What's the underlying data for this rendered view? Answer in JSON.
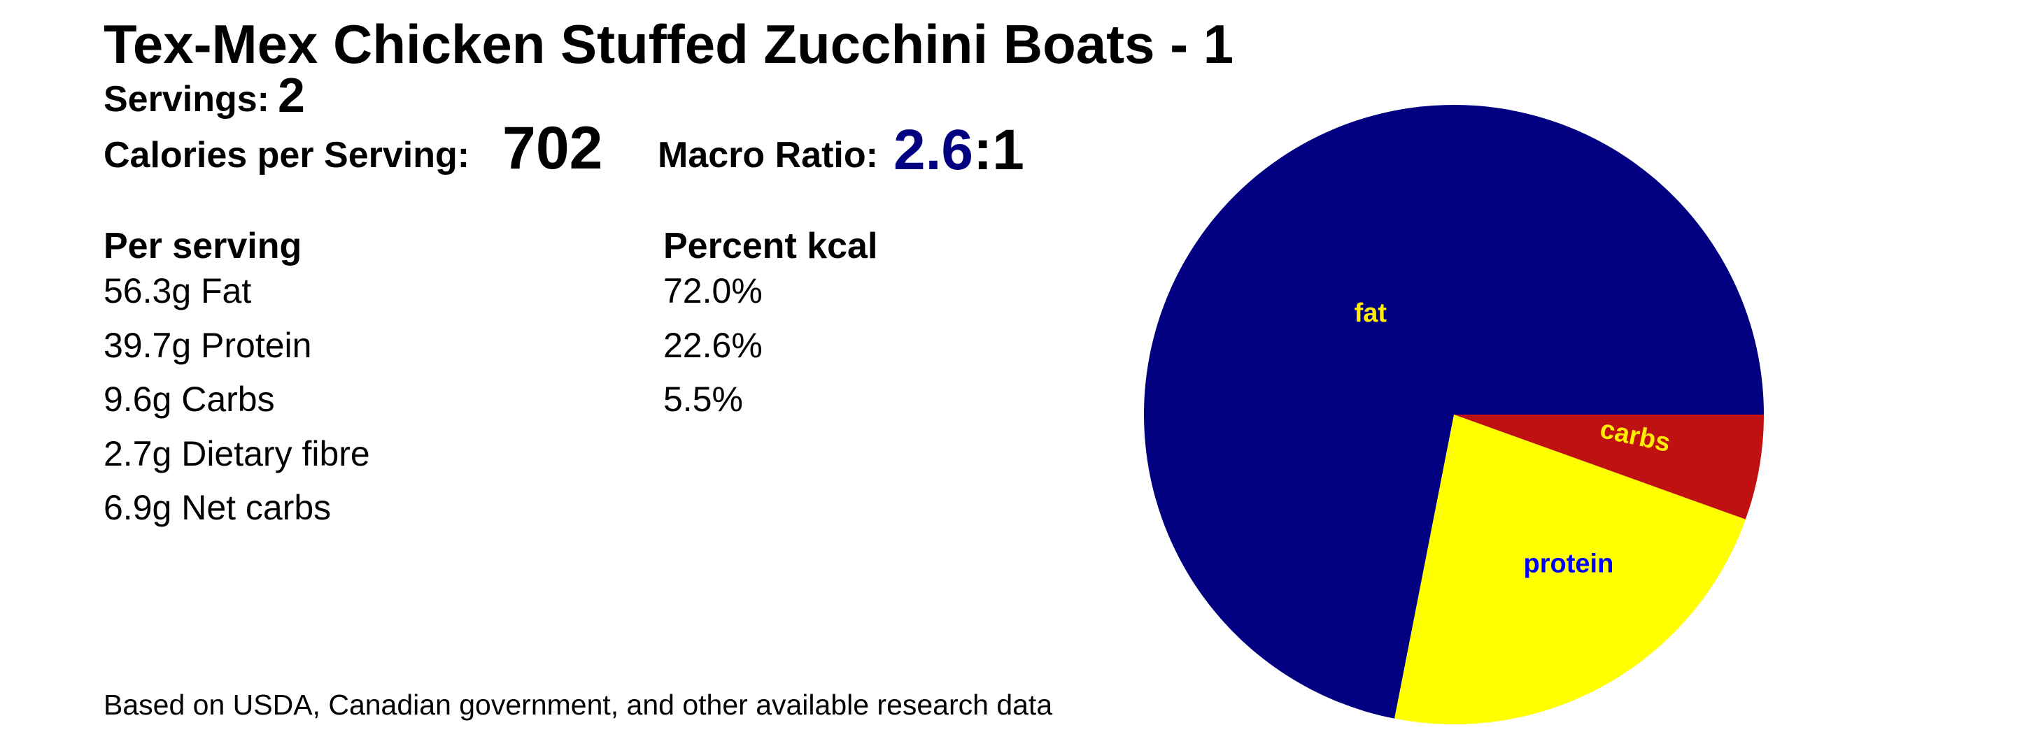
{
  "header": {
    "title": "Tex-Mex Chicken Stuffed Zucchini Boats - 1",
    "servings_label": "Servings:",
    "servings_value": "2",
    "calories_label": "Calories per Serving:",
    "calories_value": "702",
    "macro_ratio_label": "Macro Ratio:",
    "macro_ratio_value": "2.6",
    "macro_ratio_suffix": ":1"
  },
  "nutrition": {
    "per_serving_header": "Per serving",
    "percent_kcal_header": "Percent kcal",
    "rows": [
      {
        "amount": "56.3g Fat",
        "percent": "72.0%"
      },
      {
        "amount": "39.7g Protein",
        "percent": "22.6%"
      },
      {
        "amount": "9.6g Carbs",
        "percent": "5.5%"
      },
      {
        "amount": "2.7g Dietary fibre",
        "percent": ""
      },
      {
        "amount": "6.9g Net carbs",
        "percent": ""
      }
    ]
  },
  "footer": {
    "note": "Based on USDA, Canadian government, and other available research data"
  },
  "colors": {
    "accent_navy": "#000080"
  },
  "chart_data": {
    "type": "pie",
    "title": "",
    "unit": "percent kcal",
    "legend_position": "inside-labels",
    "start_angle_deg": 0,
    "direction": "clockwise",
    "categories": [
      "carbs",
      "protein",
      "fat"
    ],
    "values": [
      5.5,
      22.6,
      72.0
    ],
    "slices": [
      {
        "label": "carbs",
        "value": 5.5,
        "percent_text": "5.5%",
        "color": "#bf1111",
        "label_color": "#ffee00",
        "label_pos": [
          0.585,
          0.07
        ],
        "label_rotation_deg": 12
      },
      {
        "label": "protein",
        "value": 22.6,
        "percent_text": "22.6%",
        "color": "#ffff00",
        "label_color": "#0000ff",
        "label_pos": [
          0.37,
          0.482
        ],
        "label_rotation_deg": 0
      },
      {
        "label": "fat",
        "value": 72.0,
        "percent_text": "72.0%",
        "color": "#000080",
        "label_color": "#ffee00",
        "label_pos": [
          -0.269,
          -0.327
        ],
        "label_rotation_deg": 0
      }
    ]
  }
}
